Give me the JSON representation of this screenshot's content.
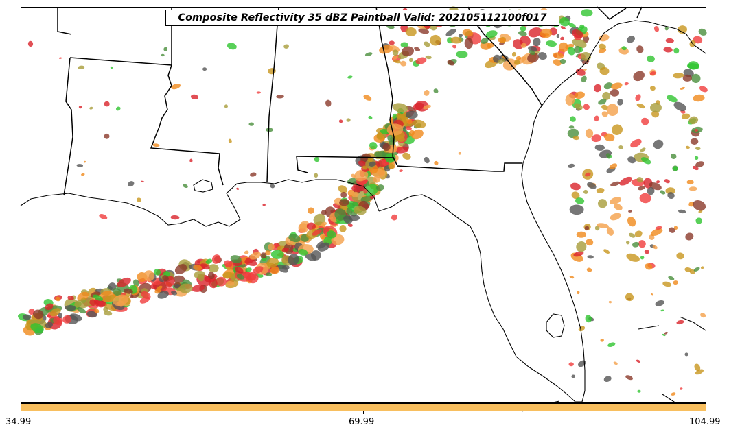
{
  "title": "Composite Reflectivity 35 dBZ Paintball Valid: 202105112100f017",
  "colorbar": {
    "color": "#f8bf5f",
    "ticks": [
      "34.99",
      "69.99",
      "104.99"
    ]
  },
  "member_colors": [
    "#d9232b",
    "#f08a1c",
    "#2fc42f",
    "#4a8f3c",
    "#a89c3a",
    "#8b3a2a",
    "#f4a04a",
    "#f03c3c",
    "#555555",
    "#c8961e"
  ]
}
